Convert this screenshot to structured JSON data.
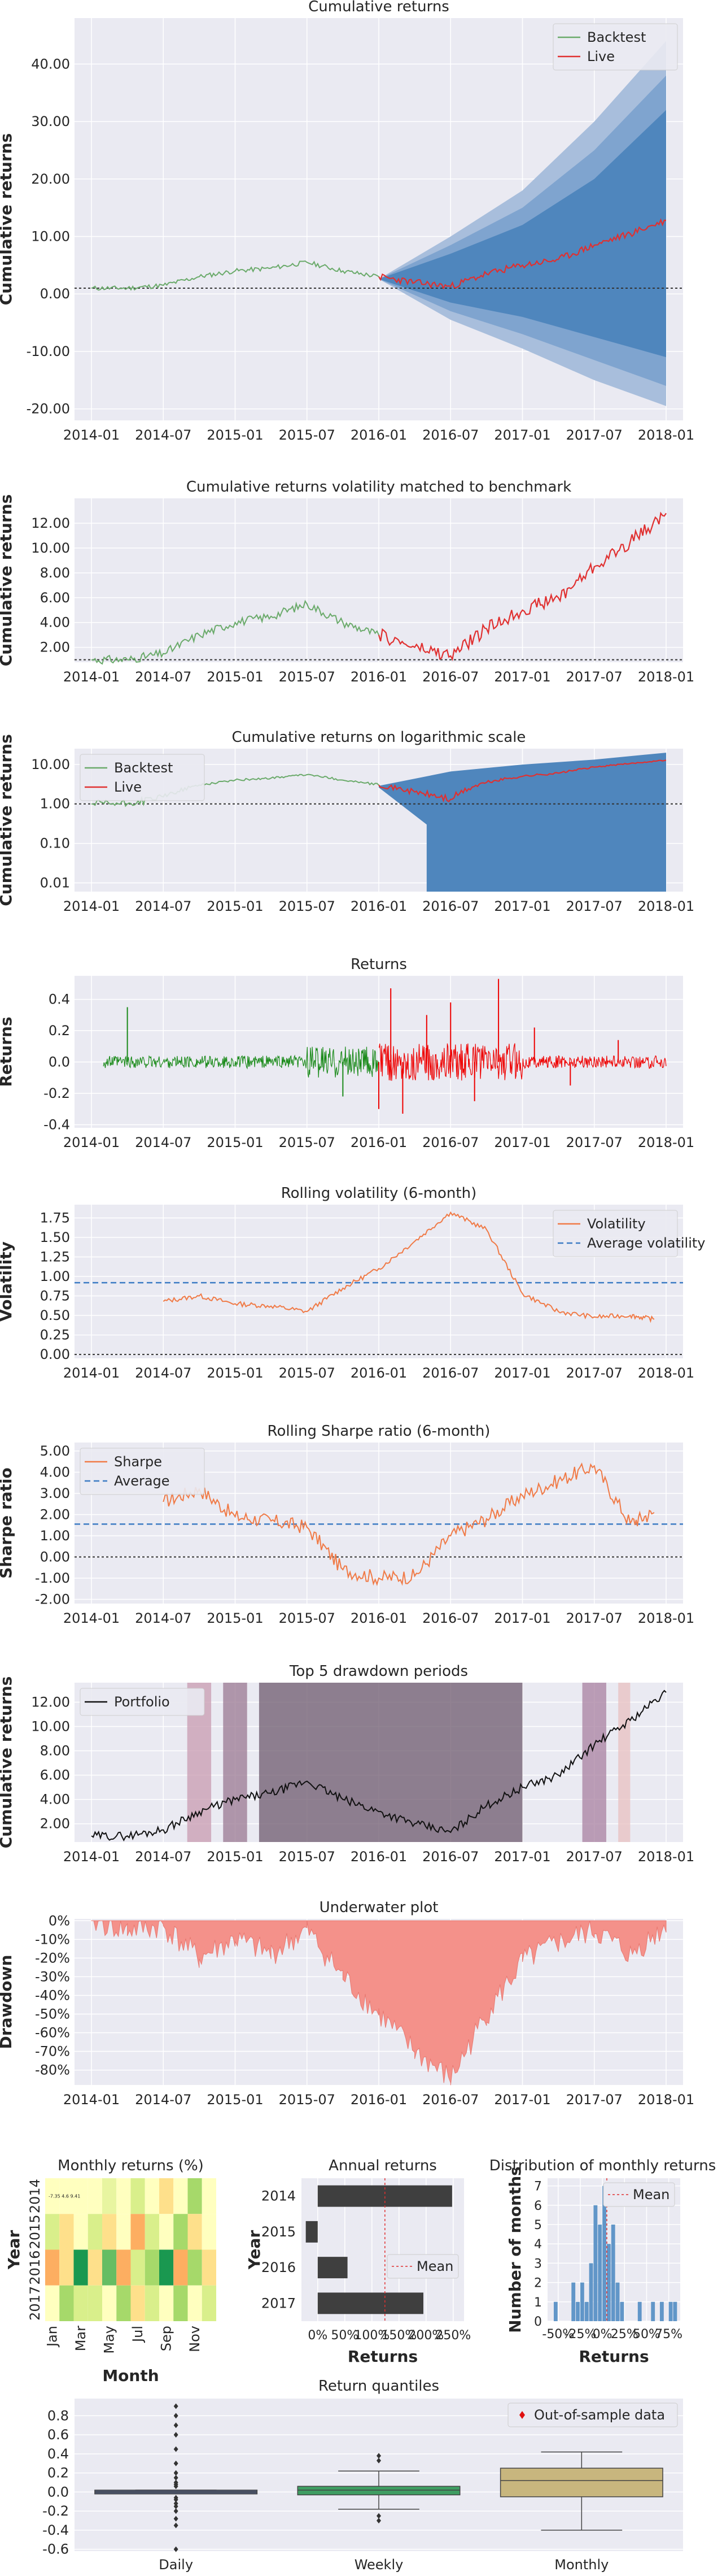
{
  "figure": {
    "colors": {
      "axes_bg": "#eaeaf2",
      "grid": "#ffffff",
      "backtest": "#6aaa6a",
      "live": "#e03030",
      "cone": [
        "#a8bedc",
        "#7fa4cf",
        "#4f86bd"
      ],
      "returns_backtest": "#1a8a1a",
      "returns_live": "#ee0000",
      "orange": "#f07a46",
      "avg_line": "#3d7cc4",
      "drawdown_fill": "#f4918a",
      "portfolio": "#111111",
      "annual_bar": "#3f3f3f",
      "hist_bar": "#6196c8",
      "box_daily": "#4c5878",
      "box_weekly": "#3f9d62",
      "box_monthly": "#c8b67e"
    }
  },
  "chart_data": [
    {
      "id": "cumret",
      "type": "area",
      "title": "Cumulative returns",
      "ylabel": "Cumulative returns",
      "xticks": [
        "2014-01",
        "2014-07",
        "2015-01",
        "2015-07",
        "2016-01",
        "2016-07",
        "2017-01",
        "2017-07",
        "2018-01"
      ],
      "yticks": [
        "-20.00",
        "-10.00",
        "0.00",
        "10.00",
        "20.00",
        "30.00",
        "40.00"
      ],
      "ylim": [
        -22,
        48
      ],
      "legend": [
        "Backtest",
        "Live"
      ],
      "legend_loc": "upper-right",
      "live_start": "2016-01",
      "baseline": 1.0,
      "x": [
        "2014-01",
        "2014-04",
        "2014-07",
        "2014-10",
        "2015-01",
        "2015-04",
        "2015-07",
        "2015-10",
        "2016-01",
        "2016-04",
        "2016-07",
        "2016-10",
        "2017-01",
        "2017-04",
        "2017-07",
        "2017-10",
        "2018-01"
      ],
      "series": [
        {
          "name": "Backtest",
          "values": [
            1.0,
            1.0,
            1.5,
            3.0,
            4.0,
            4.5,
            5.5,
            4.0,
            3.0,
            null,
            null,
            null,
            null,
            null,
            null,
            null,
            null
          ]
        },
        {
          "name": "Live",
          "values": [
            null,
            null,
            null,
            null,
            null,
            null,
            null,
            null,
            3.0,
            2.0,
            1.3,
            3.5,
            5.0,
            6.0,
            8.5,
            10.5,
            12.8
          ]
        }
      ],
      "cone_x": [
        "2016-01",
        "2016-07",
        "2017-01",
        "2017-07",
        "2018-01"
      ],
      "cone_bands": [
        {
          "upper": [
            2.6,
            7.0,
            12.0,
            20.0,
            32.0
          ],
          "lower": [
            2.6,
            -1.5,
            -4.0,
            -7.5,
            -11.0
          ]
        },
        {
          "upper": [
            2.6,
            8.5,
            15.0,
            25.0,
            38.0
          ],
          "lower": [
            2.6,
            -3.0,
            -7.0,
            -11.5,
            -16.0
          ]
        },
        {
          "upper": [
            2.6,
            10.0,
            18.0,
            30.0,
            44.0
          ],
          "lower": [
            2.6,
            -4.5,
            -9.5,
            -15.0,
            -19.5
          ]
        }
      ]
    },
    {
      "id": "volmatch",
      "type": "line",
      "title": "Cumulative returns volatility matched to benchmark",
      "ylabel": "Cumulative returns",
      "xticks": [
        "2014-01",
        "2014-07",
        "2015-01",
        "2015-07",
        "2016-01",
        "2016-07",
        "2017-01",
        "2017-07",
        "2018-01"
      ],
      "yticks": [
        "2.00",
        "4.00",
        "6.00",
        "8.00",
        "10.00",
        "12.00"
      ],
      "ylim": [
        0.8,
        14.0
      ],
      "baseline": 1.0,
      "x": [
        "2014-01",
        "2014-04",
        "2014-07",
        "2014-10",
        "2015-01",
        "2015-04",
        "2015-07",
        "2015-10",
        "2016-01",
        "2016-04",
        "2016-07",
        "2016-10",
        "2017-01",
        "2017-04",
        "2017-07",
        "2017-10",
        "2018-01"
      ],
      "series": [
        {
          "values": [
            1.0,
            1.0,
            1.5,
            3.0,
            4.0,
            4.5,
            5.5,
            4.0,
            3.0,
            null,
            null,
            null,
            null,
            null,
            null,
            null,
            null
          ]
        },
        {
          "values": [
            null,
            null,
            null,
            null,
            null,
            null,
            null,
            null,
            3.0,
            2.0,
            1.3,
            3.5,
            5.0,
            6.0,
            8.5,
            10.5,
            12.8
          ]
        }
      ]
    },
    {
      "id": "logret",
      "type": "area",
      "title": "Cumulative returns on logarithmic scale",
      "ylabel": "Cumulative returns",
      "xticks": [
        "2014-01",
        "2014-07",
        "2015-01",
        "2015-07",
        "2016-01",
        "2016-07",
        "2017-01",
        "2017-07",
        "2018-01"
      ],
      "yticks": [
        "0.01",
        "0.10",
        "1.00",
        "10.00"
      ],
      "y_scale": "log",
      "ylim": [
        0.006,
        25
      ],
      "legend": [
        "Backtest",
        "Live"
      ],
      "legend_loc": "upper-left",
      "baseline": 1.0,
      "x": [
        "2014-01",
        "2014-04",
        "2014-07",
        "2014-10",
        "2015-01",
        "2015-04",
        "2015-07",
        "2015-10",
        "2016-01",
        "2016-04",
        "2016-07",
        "2016-10",
        "2017-01",
        "2017-04",
        "2017-07",
        "2017-10",
        "2018-01"
      ],
      "series": [
        {
          "name": "Backtest",
          "values": [
            1.0,
            1.0,
            1.5,
            3.0,
            4.0,
            4.5,
            5.5,
            4.0,
            3.0,
            null,
            null,
            null,
            null,
            null,
            null,
            null,
            null
          ]
        },
        {
          "name": "Live",
          "values": [
            null,
            null,
            null,
            null,
            null,
            null,
            null,
            null,
            3.0,
            2.0,
            1.3,
            3.5,
            5.0,
            6.0,
            8.5,
            10.5,
            12.8
          ]
        }
      ],
      "cone_x": [
        "2016-01",
        "2016-07",
        "2017-01",
        "2017-07",
        "2018-01"
      ],
      "cone_upper": [
        2.6,
        6.0,
        9.0,
        12.0,
        18.0
      ],
      "cone_lower_dropoff": [
        "2016-05",
        "2016-10",
        "2017-03"
      ]
    },
    {
      "id": "returns",
      "type": "line",
      "title": "Returns",
      "ylabel": "Returns",
      "xticks": [
        "2014-01",
        "2014-07",
        "2015-01",
        "2015-07",
        "2016-01",
        "2016-07",
        "2017-01",
        "2017-07",
        "2018-01"
      ],
      "yticks": [
        "-0.4",
        "-0.2",
        "0.0",
        "0.2",
        "0.4"
      ],
      "ylim": [
        -0.42,
        0.55
      ],
      "live_start": "2016-01",
      "spikes": [
        {
          "x": "2014-04",
          "value": 0.35
        },
        {
          "x": "2015-10",
          "value": -0.22
        },
        {
          "x": "2016-01",
          "value": -0.3
        },
        {
          "x": "2016-02",
          "value": 0.47
        },
        {
          "x": "2016-03",
          "value": -0.33
        },
        {
          "x": "2016-05",
          "value": 0.3
        },
        {
          "x": "2016-07",
          "value": 0.38
        },
        {
          "x": "2016-09",
          "value": -0.25
        },
        {
          "x": "2016-11",
          "value": 0.53
        },
        {
          "x": "2017-02",
          "value": 0.22
        },
        {
          "x": "2017-05",
          "value": -0.15
        },
        {
          "x": "2017-09",
          "value": 0.14
        }
      ]
    },
    {
      "id": "rollvol",
      "type": "line",
      "title": "Rolling volatility (6-month)",
      "ylabel": "Volatility",
      "xticks": [
        "2014-01",
        "2014-07",
        "2015-01",
        "2015-07",
        "2016-01",
        "2016-07",
        "2017-01",
        "2017-07",
        "2018-01"
      ],
      "yticks": [
        "0.00",
        "0.25",
        "0.50",
        "0.75",
        "1.00",
        "1.25",
        "1.50",
        "1.75"
      ],
      "ylim": [
        -0.05,
        1.92
      ],
      "legend": [
        "Volatility",
        "Average volatility"
      ],
      "legend_loc": "upper-right",
      "average": 0.92,
      "baseline": 0.0,
      "x": [
        "2014-07",
        "2014-10",
        "2015-01",
        "2015-04",
        "2015-07",
        "2015-10",
        "2016-01",
        "2016-04",
        "2016-07",
        "2016-10",
        "2017-01",
        "2017-04",
        "2017-07",
        "2017-10",
        "2017-12"
      ],
      "series": [
        {
          "name": "Volatility",
          "values": [
            0.68,
            0.75,
            0.65,
            0.62,
            0.55,
            0.85,
            1.1,
            1.45,
            1.82,
            1.6,
            0.78,
            0.55,
            0.48,
            0.5,
            0.45
          ]
        }
      ]
    },
    {
      "id": "rollsharpe",
      "type": "line",
      "title": "Rolling Sharpe ratio (6-month)",
      "ylabel": "Sharpe ratio",
      "xticks": [
        "2014-01",
        "2014-07",
        "2015-01",
        "2015-07",
        "2016-01",
        "2016-07",
        "2017-01",
        "2017-07",
        "2018-01"
      ],
      "yticks": [
        "-2.00",
        "-1.00",
        "0.00",
        "1.00",
        "2.00",
        "3.00",
        "4.00",
        "5.00"
      ],
      "ylim": [
        -2.2,
        5.4
      ],
      "legend": [
        "Sharpe",
        "Average"
      ],
      "legend_loc": "upper-left",
      "average": 1.55,
      "baseline": 0.0,
      "x": [
        "2014-07",
        "2014-10",
        "2015-01",
        "2015-04",
        "2015-07",
        "2015-10",
        "2016-01",
        "2016-04",
        "2016-07",
        "2016-10",
        "2017-01",
        "2017-04",
        "2017-07",
        "2017-10",
        "2017-12"
      ],
      "series": [
        {
          "name": "Sharpe",
          "values": [
            2.6,
            3.2,
            1.9,
            1.7,
            1.4,
            -0.6,
            -1.0,
            -0.9,
            1.0,
            1.8,
            2.9,
            3.6,
            4.3,
            1.6,
            2.1
          ]
        }
      ]
    },
    {
      "id": "drawdowns",
      "type": "line",
      "title": "Top 5 drawdown periods",
      "ylabel": "Cumulative returns",
      "xticks": [
        "2014-01",
        "2014-07",
        "2015-01",
        "2015-07",
        "2016-01",
        "2016-07",
        "2017-01",
        "2017-07",
        "2018-01"
      ],
      "yticks": [
        "2.00",
        "4.00",
        "6.00",
        "8.00",
        "10.00",
        "12.00"
      ],
      "ylim": [
        0.5,
        13.6
      ],
      "legend": [
        "Portfolio"
      ],
      "legend_loc": "upper-left",
      "x": [
        "2014-01",
        "2014-04",
        "2014-07",
        "2014-10",
        "2015-01",
        "2015-04",
        "2015-07",
        "2015-10",
        "2016-01",
        "2016-04",
        "2016-07",
        "2016-10",
        "2017-01",
        "2017-04",
        "2017-07",
        "2017-10",
        "2018-01"
      ],
      "series": [
        {
          "name": "Portfolio",
          "values": [
            1.0,
            1.0,
            1.5,
            3.0,
            4.0,
            4.5,
            5.5,
            4.0,
            3.0,
            2.0,
            1.3,
            3.5,
            5.0,
            6.0,
            8.5,
            10.5,
            12.8
          ]
        }
      ],
      "periods": [
        {
          "start": "2014-09",
          "end": "2014-11",
          "color": "#c89bb0"
        },
        {
          "start": "2014-12",
          "end": "2015-02",
          "color": "#9a7892"
        },
        {
          "start": "2015-03",
          "end": "2017-01",
          "color": "#6e5a6e"
        },
        {
          "start": "2017-06",
          "end": "2017-08",
          "color": "#a880a0"
        },
        {
          "start": "2017-09",
          "end": "2017-10",
          "color": "#e8c0c0"
        }
      ]
    },
    {
      "id": "underwater",
      "type": "area",
      "title": "Underwater plot",
      "ylabel": "Drawdown",
      "xticks": [
        "2014-01",
        "2014-07",
        "2015-01",
        "2015-07",
        "2016-01",
        "2016-07",
        "2017-01",
        "2017-07",
        "2018-01"
      ],
      "yticks": [
        "0%",
        "-10%",
        "-20%",
        "-30%",
        "-40%",
        "-50%",
        "-60%",
        "-70%",
        "-80%"
      ],
      "ylim": [
        -88,
        1
      ],
      "x": [
        "2014-01",
        "2014-04",
        "2014-07",
        "2014-10",
        "2015-01",
        "2015-04",
        "2015-07",
        "2015-10",
        "2016-01",
        "2016-04",
        "2016-07",
        "2016-10",
        "2017-01",
        "2017-04",
        "2017-07",
        "2017-10",
        "2018-01"
      ],
      "values": [
        0,
        -5,
        -3,
        -20,
        -10,
        -18,
        -5,
        -30,
        -50,
        -70,
        -85,
        -50,
        -22,
        -12,
        -5,
        -18,
        -3
      ]
    },
    {
      "id": "monthly_heatmap",
      "type": "heatmap",
      "title": "Monthly returns (%)",
      "xlabel": "Month",
      "ylabel": "Year",
      "xticks": [
        "Jan",
        "Mar",
        "May",
        "Jul",
        "Sep",
        "Nov"
      ],
      "yticks": [
        "2014",
        "2015",
        "2016",
        "2017"
      ],
      "cell_text_2014": "-7.35 4.6 9.41",
      "rows": [
        {
          "year": "2014",
          "colors": [
            "#ffffbf",
            "#ffffbf",
            "#ffffbf",
            "#ffffbf",
            "#e8f5a0",
            "#ffffbf",
            "#d9ef8b",
            "#ffffbf",
            "#fee08b",
            "#ffffbf",
            "#a6d96a",
            "#ffffbf"
          ]
        },
        {
          "year": "2015",
          "colors": [
            "#d9ef8b",
            "#fee08b",
            "#ffffbf",
            "#d9ef8b",
            "#fee08b",
            "#ffffbf",
            "#fdae61",
            "#d9ef8b",
            "#ffffbf",
            "#a6d96a",
            "#fee08b",
            "#ffffbf"
          ]
        },
        {
          "year": "2016",
          "colors": [
            "#fdae61",
            "#fee08b",
            "#1a9850",
            "#fee08b",
            "#66bd63",
            "#fdae61",
            "#d9ef8b",
            "#a6d96a",
            "#1a9850",
            "#fdae61",
            "#a6d96a",
            "#fee08b"
          ]
        },
        {
          "year": "2017",
          "colors": [
            "#ffffbf",
            "#a6d96a",
            "#d9ef8b",
            "#d9ef8b",
            "#ffffbf",
            "#a6d96a",
            "#fee08b",
            "#d9ef8b",
            "#ffffbf",
            "#a6d96a",
            "#ffffbf",
            "#d9ef8b"
          ]
        }
      ]
    },
    {
      "id": "annual",
      "type": "bar",
      "title": "Annual returns",
      "xlabel": "Returns",
      "ylabel": "Year",
      "categories": [
        "2014",
        "2015",
        "2016",
        "2017"
      ],
      "values": [
        248,
        -22,
        55,
        195
      ],
      "mean": 124,
      "xlim": [
        -30,
        270
      ],
      "xticks": [
        "0%",
        "50%",
        "100%",
        "150%",
        "200%",
        "250%"
      ],
      "legend": [
        "Mean"
      ],
      "legend_loc": "center-right"
    },
    {
      "id": "monthly_dist",
      "type": "bar",
      "title": "Distribution of monthly returns",
      "xlabel": "Returns",
      "ylabel": "Number of months",
      "xticks": [
        "-50%",
        "-25%",
        "0%",
        "25%",
        "50%",
        "75%"
      ],
      "yticks": [
        "0",
        "1",
        "2",
        "3",
        "4",
        "5",
        "6",
        "7"
      ],
      "xlim": [
        -62,
        88
      ],
      "ylim": [
        0,
        7.4
      ],
      "bin_width": 5,
      "bins": [
        {
          "x": -55,
          "count": 1
        },
        {
          "x": -35,
          "count": 2
        },
        {
          "x": -30,
          "count": 1
        },
        {
          "x": -25,
          "count": 2
        },
        {
          "x": -20,
          "count": 1
        },
        {
          "x": -15,
          "count": 3
        },
        {
          "x": -10,
          "count": 6
        },
        {
          "x": -5,
          "count": 5
        },
        {
          "x": 0,
          "count": 7
        },
        {
          "x": 5,
          "count": 4
        },
        {
          "x": 10,
          "count": 5
        },
        {
          "x": 15,
          "count": 2
        },
        {
          "x": 20,
          "count": 1
        },
        {
          "x": 40,
          "count": 1
        },
        {
          "x": 55,
          "count": 1
        },
        {
          "x": 65,
          "count": 1
        },
        {
          "x": 75,
          "count": 1
        },
        {
          "x": 80,
          "count": 1
        }
      ],
      "mean": 5,
      "legend": [
        "Mean"
      ],
      "legend_loc": "upper-right"
    },
    {
      "id": "quantiles",
      "type": "bar",
      "title": "Return quantiles",
      "categories": [
        "Daily",
        "Weekly",
        "Monthly"
      ],
      "yticks": [
        "-0.6",
        "-0.4",
        "-0.2",
        "0.0",
        "0.2",
        "0.4",
        "0.6",
        "0.8"
      ],
      "ylim": [
        -0.62,
        0.98
      ],
      "legend": [
        "Out-of-sample data"
      ],
      "legend_loc": "upper-right",
      "boxes": [
        {
          "q1": -0.02,
          "median": 0.0,
          "q3": 0.02,
          "lo": -0.02,
          "hi": 0.02
        },
        {
          "q1": -0.03,
          "median": 0.02,
          "q3": 0.06,
          "lo": -0.18,
          "hi": 0.22
        },
        {
          "q1": -0.05,
          "median": 0.12,
          "q3": 0.25,
          "lo": -0.4,
          "hi": 0.42
        }
      ],
      "outliers_daily": [
        0.9,
        0.8,
        0.7,
        0.6,
        0.45,
        0.3,
        0.2,
        0.15,
        0.1,
        0.08,
        0.06,
        -0.06,
        -0.08,
        -0.12,
        -0.15,
        -0.2,
        -0.28,
        -0.35,
        -0.6
      ],
      "outliers_weekly": [
        0.38,
        0.33,
        -0.25,
        -0.3
      ]
    }
  ]
}
